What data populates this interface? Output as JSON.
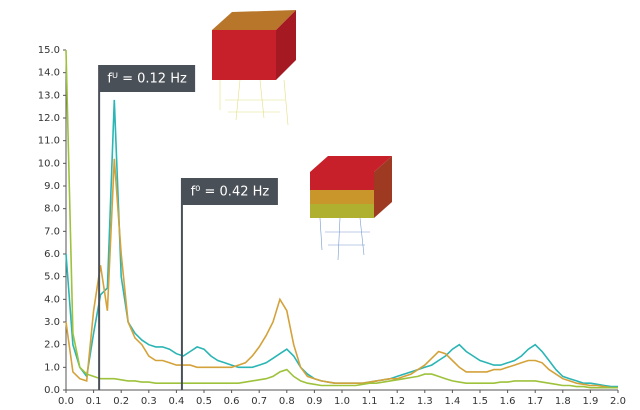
{
  "chart_data": {
    "type": "line",
    "x": [
      0,
      0.025,
      0.05,
      0.075,
      0.1,
      0.125,
      0.15,
      0.175,
      0.2,
      0.225,
      0.25,
      0.275,
      0.3,
      0.325,
      0.35,
      0.375,
      0.4,
      0.425,
      0.45,
      0.475,
      0.5,
      0.525,
      0.55,
      0.575,
      0.6,
      0.625,
      0.65,
      0.675,
      0.7,
      0.725,
      0.75,
      0.775,
      0.8,
      0.825,
      0.85,
      0.875,
      0.9,
      0.925,
      0.95,
      0.975,
      1,
      1.025,
      1.05,
      1.075,
      1.1,
      1.125,
      1.15,
      1.175,
      1.2,
      1.225,
      1.25,
      1.275,
      1.3,
      1.325,
      1.35,
      1.375,
      1.4,
      1.425,
      1.45,
      1.475,
      1.5,
      1.525,
      1.55,
      1.575,
      1.6,
      1.625,
      1.65,
      1.675,
      1.7,
      1.725,
      1.75,
      1.775,
      1.8,
      1.825,
      1.85,
      1.875,
      1.9,
      1.925,
      1.95,
      1.975,
      2
    ],
    "series": [
      {
        "color": "#2bb5b5",
        "values": [
          6,
          2,
          1,
          0.6,
          2.5,
          4.2,
          4.5,
          12.8,
          5,
          3,
          2.5,
          2.2,
          2,
          1.9,
          1.9,
          1.8,
          1.6,
          1.5,
          1.7,
          1.9,
          1.8,
          1.5,
          1.3,
          1.2,
          1.1,
          1,
          1,
          1,
          1.1,
          1.2,
          1.4,
          1.6,
          1.8,
          1.5,
          1,
          0.7,
          0.5,
          0.4,
          0.35,
          0.3,
          0.3,
          0.3,
          0.3,
          0.3,
          0.35,
          0.4,
          0.45,
          0.5,
          0.6,
          0.7,
          0.8,
          0.9,
          1,
          1.1,
          1.3,
          1.5,
          1.8,
          2,
          1.7,
          1.5,
          1.3,
          1.2,
          1.1,
          1.1,
          1.2,
          1.3,
          1.5,
          1.8,
          2,
          1.7,
          1.3,
          0.9,
          0.6,
          0.5,
          0.4,
          0.3,
          0.3,
          0.25,
          0.2,
          0.15,
          0.15
        ]
      },
      {
        "color": "#d4a23a",
        "values": [
          3,
          0.8,
          0.5,
          0.4,
          3.5,
          5.5,
          3.5,
          10.2,
          6,
          3,
          2.3,
          2,
          1.5,
          1.3,
          1.3,
          1.2,
          1.1,
          1.1,
          1.1,
          1,
          1,
          1,
          1,
          1,
          1,
          1.1,
          1.2,
          1.5,
          1.9,
          2.4,
          3,
          4,
          3.5,
          2,
          1,
          0.6,
          0.5,
          0.4,
          0.35,
          0.3,
          0.3,
          0.3,
          0.3,
          0.3,
          0.35,
          0.4,
          0.45,
          0.5,
          0.5,
          0.6,
          0.7,
          0.9,
          1.1,
          1.4,
          1.7,
          1.6,
          1.3,
          1,
          0.8,
          0.8,
          0.8,
          0.8,
          0.9,
          0.9,
          1,
          1.1,
          1.2,
          1.3,
          1.3,
          1.2,
          0.9,
          0.7,
          0.5,
          0.4,
          0.3,
          0.25,
          0.2,
          0.2,
          0.15,
          0.1,
          0.1
        ]
      },
      {
        "color": "#9ec23c",
        "values": [
          15,
          2.5,
          1,
          0.7,
          0.6,
          0.5,
          0.5,
          0.5,
          0.45,
          0.4,
          0.4,
          0.35,
          0.35,
          0.3,
          0.3,
          0.3,
          0.3,
          0.3,
          0.3,
          0.3,
          0.3,
          0.3,
          0.3,
          0.3,
          0.3,
          0.3,
          0.35,
          0.4,
          0.45,
          0.5,
          0.6,
          0.8,
          0.9,
          0.6,
          0.4,
          0.3,
          0.25,
          0.2,
          0.2,
          0.2,
          0.2,
          0.2,
          0.2,
          0.25,
          0.3,
          0.3,
          0.35,
          0.4,
          0.45,
          0.5,
          0.55,
          0.6,
          0.7,
          0.7,
          0.6,
          0.5,
          0.4,
          0.35,
          0.3,
          0.3,
          0.3,
          0.3,
          0.3,
          0.35,
          0.35,
          0.4,
          0.4,
          0.4,
          0.4,
          0.35,
          0.3,
          0.25,
          0.2,
          0.2,
          0.15,
          0.15,
          0.1,
          0.1,
          0.1,
          0.1,
          0.1
        ]
      }
    ],
    "xlim": [
      0,
      2
    ],
    "ylim": [
      0,
      15
    ],
    "xticks": [
      {
        "value": 0,
        "label": "0.0"
      },
      0.1,
      0.2,
      0.3,
      0.4,
      0.5,
      0.6,
      0.7,
      0.8,
      0.9,
      {
        "value": 1,
        "label": "1.0"
      },
      1.1,
      1.2,
      1.3,
      1.4,
      1.5,
      1.6,
      1.7,
      1.8,
      1.9,
      {
        "value": 2,
        "label": "2.0"
      }
    ],
    "yticks": [
      {
        "value": 0,
        "label": "0.0"
      },
      {
        "value": 1,
        "label": "1.0"
      },
      {
        "value": 2,
        "label": "2.0"
      },
      {
        "value": 3,
        "label": "3.0"
      },
      {
        "value": 4,
        "label": "4.0"
      },
      {
        "value": 5,
        "label": "5.0"
      },
      {
        "value": 6,
        "label": "6.0"
      },
      {
        "value": 7,
        "label": "7.0"
      },
      {
        "value": 8,
        "label": "8.0"
      },
      {
        "value": 9,
        "label": "9.0"
      },
      {
        "value": 10,
        "label": "10.0"
      },
      {
        "value": 11,
        "label": "11.0"
      },
      {
        "value": 12,
        "label": "12.0"
      },
      {
        "value": 13,
        "label": "13.0"
      },
      {
        "value": 14,
        "label": "14.0"
      },
      {
        "value": 15,
        "label": "15.0"
      }
    ],
    "annotations": [
      {
        "text": "fᵁ = 0.12 Hz",
        "x": 0.12
      },
      {
        "text": "f⁰ = 0.42 Hz",
        "x": 0.42
      }
    ],
    "annotation_color": "#4a5058"
  }
}
